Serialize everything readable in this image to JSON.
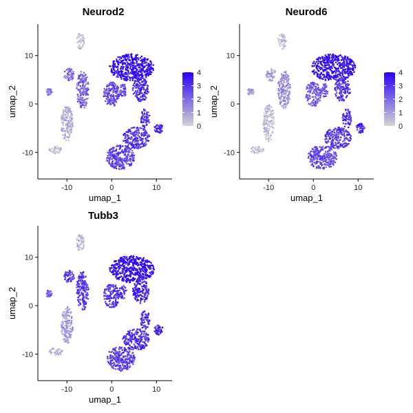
{
  "chart_data": [
    {
      "type": "scatter",
      "title": "Neurod2",
      "xlabel": "umap_1",
      "ylabel": "umap_2",
      "xticks": [
        -10,
        0,
        10
      ],
      "yticks": [
        10,
        0,
        -10
      ],
      "xlim": [
        -16.5,
        13.5
      ],
      "ylim": [
        -15.5,
        16.5
      ],
      "legend": {
        "position": "right",
        "ticks": [
          4,
          3,
          2,
          1,
          0
        ],
        "range": [
          0,
          4
        ],
        "low_color": "#d3d3d3",
        "high_color": "#2a00f5"
      },
      "clusters": [
        {
          "name": "top-right-mass",
          "cx": 4.5,
          "cy": 7.5,
          "rx": 5.0,
          "ry": 2.8,
          "level": 3.8
        },
        {
          "name": "right-upper-lobe",
          "cx": 6.5,
          "cy": 3.0,
          "rx": 1.8,
          "ry": 2.5,
          "level": 3.2
        },
        {
          "name": "right-lower-arm",
          "cx": 7.5,
          "cy": -3.0,
          "rx": 1.0,
          "ry": 2.0,
          "level": 3.0
        },
        {
          "name": "right-small-blob",
          "cx": 10.5,
          "cy": -5.0,
          "rx": 1.0,
          "ry": 1.0,
          "level": 3.4
        },
        {
          "name": "lower-right-mass",
          "cx": 5.5,
          "cy": -7.0,
          "rx": 3.0,
          "ry": 2.2,
          "level": 2.9
        },
        {
          "name": "lower-center-mass",
          "cx": 2.0,
          "cy": -11.0,
          "rx": 3.2,
          "ry": 2.5,
          "level": 2.7
        },
        {
          "name": "middle-cluster",
          "cx": 0.0,
          "cy": 2.0,
          "rx": 1.8,
          "ry": 2.5,
          "level": 2.6
        },
        {
          "name": "left-middle-column",
          "cx": -6.5,
          "cy": 3.0,
          "rx": 1.4,
          "ry": 4.0,
          "level": 2.0
        },
        {
          "name": "top-tip",
          "cx": -7.0,
          "cy": 13.0,
          "rx": 0.9,
          "ry": 1.7,
          "level": 0.4
        },
        {
          "name": "left-upper-branch",
          "cx": -9.5,
          "cy": 6.0,
          "rx": 1.2,
          "ry": 1.3,
          "level": 2.0
        },
        {
          "name": "left-stem",
          "cx": -10.0,
          "cy": -4.0,
          "rx": 1.3,
          "ry": 3.8,
          "level": 0.6
        },
        {
          "name": "bottom-left-tail",
          "cx": -12.5,
          "cy": -9.5,
          "rx": 1.6,
          "ry": 0.8,
          "level": 0.2
        },
        {
          "name": "far-left-specks",
          "cx": -14.0,
          "cy": 2.5,
          "rx": 0.7,
          "ry": 0.7,
          "level": 1.5
        },
        {
          "name": "right-small-pieces",
          "cx": 2.5,
          "cy": 2.8,
          "rx": 0.8,
          "ry": 1.4,
          "level": 2.5
        }
      ]
    },
    {
      "type": "scatter",
      "title": "Neurod6",
      "xlabel": "umap_1",
      "ylabel": "umap_2",
      "xticks": [
        -10,
        0,
        10
      ],
      "yticks": [
        10,
        0,
        -10
      ],
      "xlim": [
        -16.5,
        13.5
      ],
      "ylim": [
        -15.5,
        16.5
      ],
      "legend": {
        "position": "right",
        "ticks": [
          4,
          3,
          2,
          1,
          0
        ],
        "range": [
          0,
          4
        ],
        "low_color": "#d3d3d3",
        "high_color": "#2a00f5"
      },
      "clusters": [
        {
          "name": "top-right-mass",
          "cx": 4.5,
          "cy": 7.5,
          "rx": 5.0,
          "ry": 2.8,
          "level": 3.8
        },
        {
          "name": "right-upper-lobe",
          "cx": 6.5,
          "cy": 3.0,
          "rx": 1.8,
          "ry": 2.5,
          "level": 3.0
        },
        {
          "name": "right-lower-arm",
          "cx": 7.5,
          "cy": -3.0,
          "rx": 1.0,
          "ry": 2.0,
          "level": 3.0
        },
        {
          "name": "right-small-blob",
          "cx": 10.5,
          "cy": -5.0,
          "rx": 1.0,
          "ry": 1.0,
          "level": 3.3
        },
        {
          "name": "lower-right-mass",
          "cx": 5.5,
          "cy": -7.0,
          "rx": 3.0,
          "ry": 2.2,
          "level": 2.8
        },
        {
          "name": "lower-center-mass",
          "cx": 2.0,
          "cy": -11.0,
          "rx": 3.2,
          "ry": 2.5,
          "level": 2.6
        },
        {
          "name": "middle-cluster",
          "cx": 0.0,
          "cy": 2.0,
          "rx": 1.8,
          "ry": 2.5,
          "level": 2.2
        },
        {
          "name": "left-middle-column",
          "cx": -6.5,
          "cy": 3.0,
          "rx": 1.4,
          "ry": 4.0,
          "level": 1.2
        },
        {
          "name": "top-tip",
          "cx": -7.0,
          "cy": 13.0,
          "rx": 0.9,
          "ry": 1.7,
          "level": 0.2
        },
        {
          "name": "left-upper-branch",
          "cx": -9.5,
          "cy": 6.0,
          "rx": 1.2,
          "ry": 1.3,
          "level": 1.0
        },
        {
          "name": "left-stem",
          "cx": -10.0,
          "cy": -4.0,
          "rx": 1.3,
          "ry": 3.8,
          "level": 0.3
        },
        {
          "name": "bottom-left-tail",
          "cx": -12.5,
          "cy": -9.5,
          "rx": 1.6,
          "ry": 0.8,
          "level": 0.1
        },
        {
          "name": "far-left-specks",
          "cx": -14.0,
          "cy": 2.5,
          "rx": 0.7,
          "ry": 0.7,
          "level": 0.8
        },
        {
          "name": "right-small-pieces",
          "cx": 2.5,
          "cy": 2.8,
          "rx": 0.8,
          "ry": 1.4,
          "level": 2.2
        }
      ]
    },
    {
      "type": "scatter",
      "title": "Tubb3",
      "xlabel": "umap_1",
      "ylabel": "umap_2",
      "xticks": [
        -10,
        0,
        10
      ],
      "yticks": [
        10,
        0,
        -10
      ],
      "xlim": [
        -16.5,
        13.5
      ],
      "ylim": [
        -15.5,
        16.5
      ],
      "legend": null,
      "clusters": [
        {
          "name": "top-right-mass",
          "cx": 4.5,
          "cy": 7.5,
          "rx": 5.0,
          "ry": 2.8,
          "level": 3.9
        },
        {
          "name": "right-upper-lobe",
          "cx": 6.5,
          "cy": 3.0,
          "rx": 1.8,
          "ry": 2.5,
          "level": 3.4
        },
        {
          "name": "right-lower-arm",
          "cx": 7.5,
          "cy": -3.0,
          "rx": 1.0,
          "ry": 2.0,
          "level": 3.1
        },
        {
          "name": "right-small-blob",
          "cx": 10.5,
          "cy": -5.0,
          "rx": 1.0,
          "ry": 1.0,
          "level": 3.4
        },
        {
          "name": "lower-right-mass",
          "cx": 5.5,
          "cy": -7.0,
          "rx": 3.0,
          "ry": 2.2,
          "level": 3.0
        },
        {
          "name": "lower-center-mass",
          "cx": 2.0,
          "cy": -11.0,
          "rx": 3.2,
          "ry": 2.5,
          "level": 2.8
        },
        {
          "name": "middle-cluster",
          "cx": 0.0,
          "cy": 2.0,
          "rx": 1.8,
          "ry": 2.5,
          "level": 3.0
        },
        {
          "name": "left-middle-column",
          "cx": -6.5,
          "cy": 3.0,
          "rx": 1.4,
          "ry": 4.0,
          "level": 2.8
        },
        {
          "name": "top-tip",
          "cx": -7.0,
          "cy": 13.0,
          "rx": 0.9,
          "ry": 1.7,
          "level": 0.5
        },
        {
          "name": "left-upper-branch",
          "cx": -9.5,
          "cy": 6.0,
          "rx": 1.2,
          "ry": 1.3,
          "level": 2.8
        },
        {
          "name": "left-stem",
          "cx": -10.0,
          "cy": -4.0,
          "rx": 1.3,
          "ry": 3.8,
          "level": 1.0
        },
        {
          "name": "bottom-left-tail",
          "cx": -12.5,
          "cy": -9.5,
          "rx": 1.6,
          "ry": 0.8,
          "level": 0.6
        },
        {
          "name": "far-left-specks",
          "cx": -14.0,
          "cy": 2.5,
          "rx": 0.7,
          "ry": 0.7,
          "level": 2.2
        },
        {
          "name": "right-small-pieces",
          "cx": 2.5,
          "cy": 2.8,
          "rx": 0.8,
          "ry": 1.4,
          "level": 3.0
        }
      ]
    }
  ]
}
